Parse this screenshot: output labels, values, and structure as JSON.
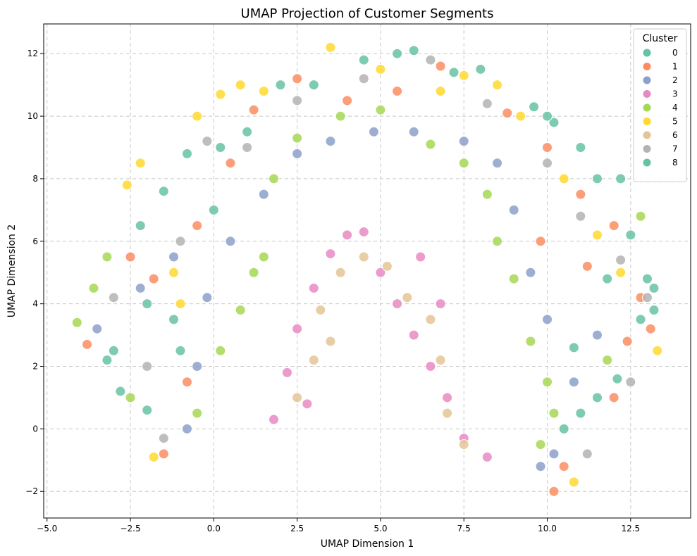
{
  "chart_data": {
    "type": "scatter",
    "title": "UMAP Projection of Customer Segments",
    "xlabel": "UMAP Dimension 1",
    "ylabel": "UMAP Dimension 2",
    "xlim": [
      -5.1,
      14.3
    ],
    "ylim": [
      -2.85,
      12.95
    ],
    "xticks": [
      -5.0,
      -2.5,
      0.0,
      2.5,
      5.0,
      7.5,
      10.0,
      12.5
    ],
    "xtick_labels": [
      "−5.0",
      "−2.5",
      "0.0",
      "2.5",
      "5.0",
      "7.5",
      "10.0",
      "12.5"
    ],
    "yticks": [
      -2,
      0,
      2,
      4,
      6,
      8,
      10,
      12
    ],
    "ytick_labels": [
      "−2",
      "0",
      "2",
      "4",
      "6",
      "8",
      "10",
      "12"
    ],
    "grid": true,
    "legend": {
      "title": "Cluster",
      "position": "top-right",
      "entries": [
        {
          "label": "0",
          "color": "#66c2a5"
        },
        {
          "label": "1",
          "color": "#fc8d62"
        },
        {
          "label": "2",
          "color": "#8da0cb"
        },
        {
          "label": "3",
          "color": "#e78ac3"
        },
        {
          "label": "4",
          "color": "#a6d854"
        },
        {
          "label": "5",
          "color": "#ffd92f"
        },
        {
          "label": "6",
          "color": "#e5c494"
        },
        {
          "label": "7",
          "color": "#b3b3b3"
        },
        {
          "label": "8",
          "color": "#66c2a5"
        }
      ]
    },
    "series": [
      {
        "cluster": "0",
        "color": "#66c2a5",
        "points": [
          [
            -2.8,
            1.2
          ],
          [
            -2.2,
            6.5
          ],
          [
            -1.5,
            7.6
          ],
          [
            -0.8,
            8.8
          ],
          [
            0.2,
            9.0
          ],
          [
            2.0,
            11.0
          ],
          [
            4.5,
            11.8
          ],
          [
            6.0,
            12.1
          ],
          [
            7.2,
            11.4
          ],
          [
            9.6,
            10.3
          ],
          [
            10.2,
            9.8
          ],
          [
            11.5,
            8.0
          ],
          [
            12.5,
            6.2
          ],
          [
            13.0,
            4.8
          ],
          [
            13.2,
            3.8
          ],
          [
            12.1,
            1.6
          ],
          [
            11.0,
            0.5
          ],
          [
            -3.2,
            2.2
          ],
          [
            -2.0,
            0.6
          ],
          [
            -1.2,
            3.5
          ],
          [
            11.8,
            4.8
          ],
          [
            10.8,
            2.6
          ]
        ]
      },
      {
        "cluster": "1",
        "color": "#fc8d62",
        "points": [
          [
            -3.8,
            2.7
          ],
          [
            -2.5,
            5.5
          ],
          [
            -1.8,
            4.8
          ],
          [
            -0.5,
            6.5
          ],
          [
            0.5,
            8.5
          ],
          [
            1.2,
            10.2
          ],
          [
            2.5,
            11.2
          ],
          [
            4.0,
            10.5
          ],
          [
            5.5,
            10.8
          ],
          [
            6.8,
            11.6
          ],
          [
            8.8,
            10.1
          ],
          [
            10.0,
            9.0
          ],
          [
            11.0,
            7.5
          ],
          [
            12.0,
            6.5
          ],
          [
            12.8,
            4.2
          ],
          [
            13.1,
            3.2
          ],
          [
            12.0,
            1.0
          ],
          [
            10.5,
            -1.2
          ],
          [
            10.2,
            -2.0
          ],
          [
            -1.5,
            -0.8
          ],
          [
            -0.8,
            1.5
          ],
          [
            11.2,
            5.2
          ],
          [
            9.8,
            6.0
          ],
          [
            12.4,
            2.8
          ]
        ]
      },
      {
        "cluster": "2",
        "color": "#8da0cb",
        "points": [
          [
            -3.5,
            3.2
          ],
          [
            -2.2,
            4.5
          ],
          [
            -1.2,
            5.5
          ],
          [
            -0.2,
            4.2
          ],
          [
            -0.5,
            2.0
          ],
          [
            -0.8,
            0.0
          ],
          [
            0.5,
            6.0
          ],
          [
            1.5,
            7.5
          ],
          [
            2.5,
            8.8
          ],
          [
            3.5,
            9.2
          ],
          [
            4.8,
            9.5
          ],
          [
            6.0,
            9.5
          ],
          [
            7.5,
            9.2
          ],
          [
            8.5,
            8.5
          ],
          [
            9.0,
            7.0
          ],
          [
            9.5,
            5.0
          ],
          [
            10.0,
            3.5
          ],
          [
            10.8,
            1.5
          ],
          [
            10.2,
            -0.8
          ],
          [
            11.5,
            3.0
          ],
          [
            9.8,
            -1.2
          ]
        ]
      },
      {
        "cluster": "3",
        "color": "#e78ac3",
        "points": [
          [
            1.8,
            0.3
          ],
          [
            2.2,
            1.8
          ],
          [
            2.5,
            3.2
          ],
          [
            3.0,
            4.5
          ],
          [
            3.5,
            5.6
          ],
          [
            4.0,
            6.2
          ],
          [
            4.5,
            6.3
          ],
          [
            5.0,
            5.0
          ],
          [
            5.5,
            4.0
          ],
          [
            6.0,
            3.0
          ],
          [
            6.5,
            2.0
          ],
          [
            7.0,
            1.0
          ],
          [
            7.5,
            -0.3
          ],
          [
            8.2,
            -0.9
          ],
          [
            2.8,
            0.8
          ],
          [
            6.2,
            5.5
          ],
          [
            6.8,
            4.0
          ]
        ]
      },
      {
        "cluster": "4",
        "color": "#a6d854",
        "points": [
          [
            -4.1,
            3.4
          ],
          [
            -3.6,
            4.5
          ],
          [
            -3.2,
            5.5
          ],
          [
            -2.5,
            1.0
          ],
          [
            -0.5,
            0.5
          ],
          [
            0.2,
            2.5
          ],
          [
            0.8,
            3.8
          ],
          [
            1.2,
            5.0
          ],
          [
            1.5,
            5.5
          ],
          [
            1.8,
            8.0
          ],
          [
            2.5,
            9.3
          ],
          [
            3.8,
            10.0
          ],
          [
            5.0,
            10.2
          ],
          [
            6.5,
            9.1
          ],
          [
            7.5,
            8.5
          ],
          [
            8.2,
            7.5
          ],
          [
            8.5,
            6.0
          ],
          [
            9.0,
            4.8
          ],
          [
            9.5,
            2.8
          ],
          [
            10.0,
            1.5
          ],
          [
            10.2,
            0.5
          ],
          [
            9.8,
            -0.5
          ],
          [
            12.8,
            6.8
          ],
          [
            11.8,
            2.2
          ]
        ]
      },
      {
        "cluster": "5",
        "color": "#ffd92f",
        "points": [
          [
            -2.6,
            7.8
          ],
          [
            -2.2,
            8.5
          ],
          [
            -1.8,
            -0.9
          ],
          [
            -1.2,
            5.0
          ],
          [
            -0.5,
            10.0
          ],
          [
            0.2,
            10.7
          ],
          [
            0.8,
            11.0
          ],
          [
            1.5,
            10.8
          ],
          [
            3.5,
            12.2
          ],
          [
            5.0,
            11.5
          ],
          [
            6.8,
            10.8
          ],
          [
            7.5,
            11.3
          ],
          [
            8.5,
            11.0
          ],
          [
            9.2,
            10.0
          ],
          [
            10.5,
            8.0
          ],
          [
            11.5,
            6.2
          ],
          [
            12.2,
            5.0
          ],
          [
            13.3,
            2.5
          ],
          [
            10.8,
            -1.7
          ],
          [
            -1.0,
            4.0
          ]
        ]
      },
      {
        "cluster": "6",
        "color": "#e5c494",
        "points": [
          [
            2.5,
            1.0
          ],
          [
            3.0,
            2.2
          ],
          [
            3.2,
            3.8
          ],
          [
            3.8,
            5.0
          ],
          [
            4.5,
            5.5
          ],
          [
            5.2,
            5.2
          ],
          [
            5.8,
            4.2
          ],
          [
            6.5,
            3.5
          ],
          [
            6.8,
            2.2
          ],
          [
            7.0,
            0.5
          ],
          [
            7.5,
            -0.5
          ],
          [
            3.5,
            2.8
          ]
        ]
      },
      {
        "cluster": "7",
        "color": "#b3b3b3",
        "points": [
          [
            -3.0,
            4.2
          ],
          [
            -2.0,
            2.0
          ],
          [
            -1.5,
            -0.3
          ],
          [
            -1.0,
            6.0
          ],
          [
            -0.2,
            9.2
          ],
          [
            1.0,
            9.0
          ],
          [
            2.5,
            10.5
          ],
          [
            4.5,
            11.2
          ],
          [
            6.5,
            11.8
          ],
          [
            8.2,
            10.4
          ],
          [
            10.0,
            8.5
          ],
          [
            11.0,
            6.8
          ],
          [
            12.2,
            5.4
          ],
          [
            13.0,
            4.2
          ],
          [
            12.5,
            1.5
          ],
          [
            11.2,
            -0.8
          ]
        ]
      },
      {
        "cluster": "8",
        "color": "#66c2a5",
        "points": [
          [
            -3.0,
            2.5
          ],
          [
            -2.0,
            4.0
          ],
          [
            -1.0,
            2.5
          ],
          [
            0.0,
            7.0
          ],
          [
            1.0,
            9.5
          ],
          [
            3.0,
            11.0
          ],
          [
            5.5,
            12.0
          ],
          [
            8.0,
            11.5
          ],
          [
            10.0,
            10.0
          ],
          [
            11.0,
            9.0
          ],
          [
            12.2,
            8.0
          ],
          [
            13.2,
            4.5
          ],
          [
            12.8,
            3.5
          ],
          [
            11.5,
            1.0
          ],
          [
            10.5,
            0.0
          ]
        ]
      }
    ]
  }
}
